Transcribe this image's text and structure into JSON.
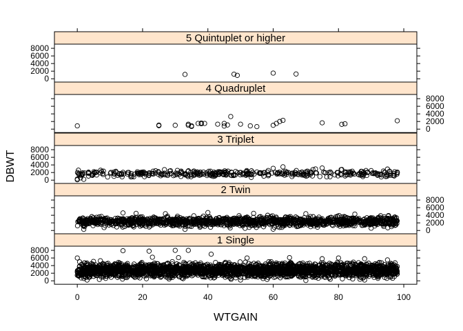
{
  "chart_data": {
    "type": "scatter",
    "layout": "lattice-stacked-panels",
    "xlabel": "WTGAIN",
    "ylabel": "DBWT",
    "xlim": [
      -7,
      104
    ],
    "ylim": [
      -900,
      9100
    ],
    "x_ticks": [
      0,
      20,
      40,
      60,
      80,
      100
    ],
    "y_ticks": [
      0,
      2000,
      4000,
      6000,
      8000
    ],
    "strip_fill": "#ffe5cc",
    "point_color": "#000000",
    "panels": [
      {
        "strip": "5 Quintuplet or higher",
        "y_axis_side": "left",
        "points": [
          [
            33,
            1150
          ],
          [
            48,
            1200
          ],
          [
            49,
            900
          ],
          [
            60,
            1500
          ],
          [
            67,
            1250
          ]
        ]
      },
      {
        "strip": "4 Quadruplet",
        "y_axis_side": "right",
        "points": [
          [
            0,
            850
          ],
          [
            25,
            900
          ],
          [
            25,
            1050
          ],
          [
            30,
            1000
          ],
          [
            34,
            1000
          ],
          [
            34,
            1300
          ],
          [
            35,
            700
          ],
          [
            35,
            850
          ],
          [
            37,
            1500
          ],
          [
            38,
            1600
          ],
          [
            38,
            1400
          ],
          [
            39,
            1500
          ],
          [
            43,
            1300
          ],
          [
            45,
            1500
          ],
          [
            45,
            800
          ],
          [
            46,
            1100
          ],
          [
            47,
            3300
          ],
          [
            50,
            1300
          ],
          [
            53,
            850
          ],
          [
            55,
            650
          ],
          [
            60,
            1000
          ],
          [
            61,
            1500
          ],
          [
            62,
            2000
          ],
          [
            63,
            2300
          ],
          [
            75,
            1650
          ],
          [
            81,
            1250
          ],
          [
            82,
            1400
          ],
          [
            98,
            2200
          ]
        ]
      },
      {
        "strip": "3 Triplet",
        "y_axis_side": "left",
        "dense": {
          "xmin": 0,
          "xmax": 98,
          "ymin": 500,
          "ymax": 3000,
          "count": 380,
          "seed": 3
        },
        "points": [
          [
            0,
            100
          ],
          [
            0,
            300
          ],
          [
            1,
            600
          ],
          [
            2,
            200
          ],
          [
            60,
            3100
          ],
          [
            63,
            3500
          ],
          [
            75,
            3200
          ],
          [
            81,
            2800
          ],
          [
            90,
            2500
          ],
          [
            95,
            2900
          ],
          [
            98,
            1900
          ],
          [
            98,
            2100
          ]
        ]
      },
      {
        "strip": "2 Twin",
        "y_axis_side": "right",
        "dense": {
          "xmin": 0,
          "xmax": 98,
          "ymin": 500,
          "ymax": 4200,
          "count": 1400,
          "seed": 7
        },
        "points": [
          [
            14,
            4600
          ],
          [
            18,
            4500
          ],
          [
            27,
            4400
          ],
          [
            40,
            4700
          ],
          [
            54,
            4500
          ],
          [
            70,
            4400
          ],
          [
            85,
            4300
          ],
          [
            2,
            300
          ],
          [
            33,
            300
          ],
          [
            60,
            350
          ],
          [
            90,
            600
          ]
        ]
      },
      {
        "strip": "1 Single",
        "y_axis_side": "left",
        "dense": {
          "xmin": 0,
          "xmax": 98,
          "ymin": 100,
          "ymax": 5400,
          "count": 2600,
          "seed": 11
        },
        "points": [
          [
            14,
            7900
          ],
          [
            22,
            7800
          ],
          [
            30,
            8000
          ],
          [
            34,
            8000
          ],
          [
            41,
            7000
          ],
          [
            0,
            6000
          ],
          [
            23,
            6200
          ],
          [
            31,
            6100
          ],
          [
            52,
            6000
          ],
          [
            65,
            6100
          ],
          [
            75,
            5800
          ],
          [
            80,
            6000
          ],
          [
            88,
            5800
          ],
          [
            95,
            5500
          ],
          [
            3,
            200
          ],
          [
            50,
            200
          ],
          [
            70,
            100
          ],
          [
            88,
            200
          ]
        ]
      }
    ]
  }
}
